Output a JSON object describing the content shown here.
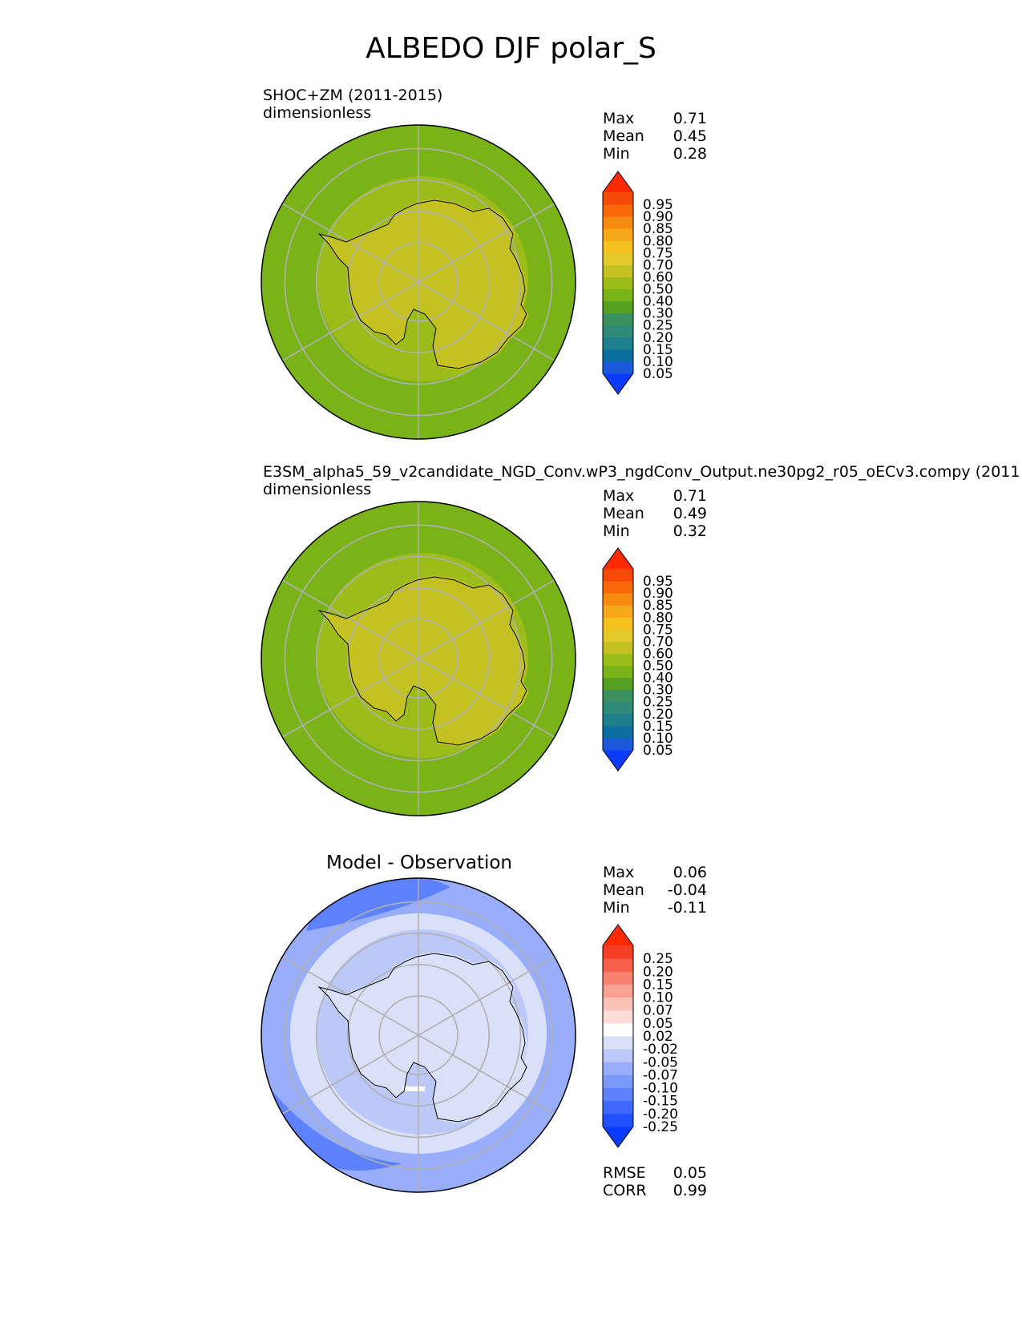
{
  "title": "ALBEDO DJF polar_S",
  "panels": [
    {
      "title_line1": "SHOC+ZM (2011-2015)",
      "title_line2": "dimensionless",
      "stats": [
        {
          "label": "Max",
          "value": "0.71"
        },
        {
          "label": "Mean",
          "value": "0.45"
        },
        {
          "label": "Min",
          "value": "0.28"
        }
      ]
    },
    {
      "title_line1": "E3SM_alpha5_59_v2candidate_NGD_Conv.wP3_ngdConv_Output.ne30pg2_r05_oECv3.compy (2011",
      "title_line2": "dimensionless",
      "stats": [
        {
          "label": "Max",
          "value": "0.71"
        },
        {
          "label": "Mean",
          "value": "0.49"
        },
        {
          "label": "Min",
          "value": "0.32"
        }
      ]
    },
    {
      "heading": "Model - Observation",
      "stats": [
        {
          "label": "Max",
          "value": "0.06"
        },
        {
          "label": "Mean",
          "value": "-0.04"
        },
        {
          "label": "Min",
          "value": "-0.11"
        }
      ],
      "metrics": [
        {
          "label": "RMSE",
          "value": "0.05"
        },
        {
          "label": "CORR",
          "value": "0.99"
        }
      ]
    }
  ],
  "chart_data": [
    {
      "type": "heatmap",
      "projection": "south polar stereographic",
      "title": "SHOC+ZM (2011-2015)",
      "units": "dimensionless",
      "colorbar": {
        "extend": "both",
        "levels": [
          "0.05",
          "0.10",
          "0.15",
          "0.20",
          "0.25",
          "0.30",
          "0.40",
          "0.50",
          "0.60",
          "0.70",
          "0.75",
          "0.80",
          "0.85",
          "0.90",
          "0.95"
        ],
        "colors": [
          "#0a3cff",
          "#1a5ad8",
          "#0a6e9e",
          "#1f7f8c",
          "#2f8a78",
          "#3b9060",
          "#55a020",
          "#7ab317",
          "#9bbc19",
          "#c3c222",
          "#e3ca2a",
          "#f4c01e",
          "#f7a81a",
          "#f78a10",
          "#f76808",
          "#f44a05",
          "#ff2a00"
        ]
      },
      "regions": [
        {
          "zone": "Antarctic continent",
          "value": 0.65
        },
        {
          "zone": "sea-ice margin",
          "value": 0.55
        },
        {
          "zone": "Southern Ocean",
          "value": 0.4
        }
      ],
      "max": 0.71,
      "mean": 0.45,
      "min": 0.28
    },
    {
      "type": "heatmap",
      "projection": "south polar stereographic",
      "title": "E3SM_alpha5_59_v2candidate_NGD_Conv.wP3_ngdConv_Output.ne30pg2_r05_oECv3.compy (2011",
      "units": "dimensionless",
      "colorbar": {
        "extend": "both",
        "levels": [
          "0.05",
          "0.10",
          "0.15",
          "0.20",
          "0.25",
          "0.30",
          "0.40",
          "0.50",
          "0.60",
          "0.70",
          "0.75",
          "0.80",
          "0.85",
          "0.90",
          "0.95"
        ],
        "colors": [
          "#0a3cff",
          "#1a5ad8",
          "#0a6e9e",
          "#1f7f8c",
          "#2f8a78",
          "#3b9060",
          "#55a020",
          "#7ab317",
          "#9bbc19",
          "#c3c222",
          "#e3ca2a",
          "#f4c01e",
          "#f7a81a",
          "#f78a10",
          "#f76808",
          "#f44a05",
          "#ff2a00"
        ]
      },
      "regions": [
        {
          "zone": "Antarctic continent",
          "value": 0.65
        },
        {
          "zone": "sea-ice margin",
          "value": 0.55
        },
        {
          "zone": "Southern Ocean",
          "value": 0.45
        }
      ],
      "max": 0.71,
      "mean": 0.49,
      "min": 0.32
    },
    {
      "type": "heatmap",
      "projection": "south polar stereographic",
      "title": "Model - Observation",
      "colorbar": {
        "extend": "both",
        "levels": [
          "-0.25",
          "-0.20",
          "-0.15",
          "-0.10",
          "-0.07",
          "-0.05",
          "-0.02",
          "0.02",
          "0.05",
          "0.07",
          "0.10",
          "0.15",
          "0.20",
          "0.25"
        ],
        "colors": [
          "#0a3cff",
          "#2150ff",
          "#3f68ff",
          "#5e82ff",
          "#7b98fb",
          "#98aefa",
          "#bcc8f7",
          "#d9e0f8",
          "#fefefe",
          "#fbdcd6",
          "#f9c1b8",
          "#f7a293",
          "#f7826f",
          "#f6604a",
          "#f34024",
          "#ff2a00"
        ]
      },
      "regions": [
        {
          "zone": "Antarctic continent",
          "value": 0.0
        },
        {
          "zone": "coastal band",
          "value": -0.02
        },
        {
          "zone": "sea-ice margin",
          "value": -0.04
        },
        {
          "zone": "Southern Ocean",
          "value": -0.07
        }
      ],
      "max": 0.06,
      "mean": -0.04,
      "min": -0.11,
      "rmse": 0.05,
      "corr": 0.99
    }
  ]
}
